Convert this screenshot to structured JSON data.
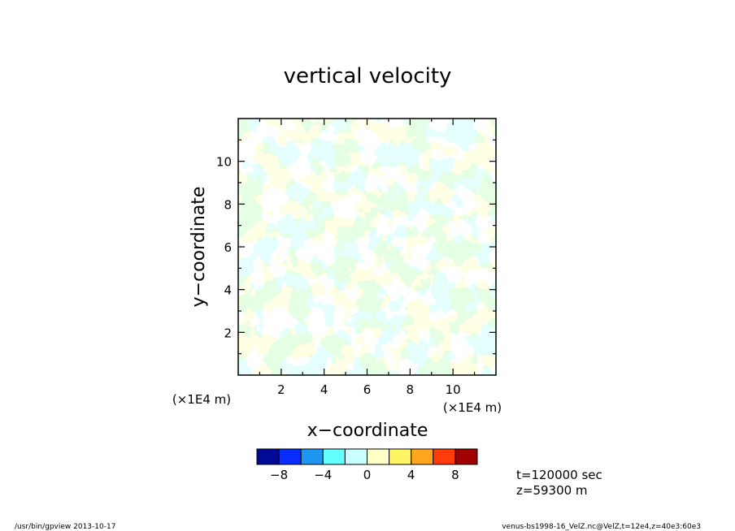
{
  "chart_data": {
    "type": "heatmap",
    "title": "vertical velocity",
    "xlabel": "x−coordinate",
    "ylabel": "y−coordinate",
    "x_unit_label": "(×1E4 m)",
    "y_unit_label": "(×1E4 m)",
    "xlim": [
      0,
      12
    ],
    "ylim": [
      0,
      12
    ],
    "x_ticks": [
      2,
      4,
      6,
      8,
      10
    ],
    "y_ticks": [
      2,
      4,
      6,
      8,
      10
    ],
    "x_tick_labels": [
      "2",
      "4",
      "6",
      "8",
      "10"
    ],
    "y_tick_labels": [
      "2",
      "4",
      "6",
      "8",
      "10"
    ],
    "color_levels": [
      -10,
      -8,
      -6,
      -4,
      -2,
      0,
      2,
      4,
      6,
      8,
      10
    ],
    "colorbar_tick_values": [
      -8,
      -4,
      0,
      4,
      8
    ],
    "colorbar_tick_labels": [
      "−8",
      "−4",
      "0",
      "4",
      "8"
    ],
    "colors": [
      "#000a96",
      "#0a2dff",
      "#1e96f0",
      "#64ffff",
      "#c8ffff",
      "#ffffc8",
      "#fff564",
      "#ffa51e",
      "#ff3c0a",
      "#a00000"
    ],
    "field_description_colors": {
      "negative": "#c8ffff",
      "positive": "#ffffc8"
    },
    "grid": false
  },
  "annotations": {
    "time": "t=120000 sec",
    "height": "z=59300 m"
  },
  "footer": {
    "left": "/usr/bin/gpview   2013-10-17",
    "right": "venus-bs1998-16_VelZ.nc@VelZ,t=12e4,z=40e3:60e3"
  }
}
